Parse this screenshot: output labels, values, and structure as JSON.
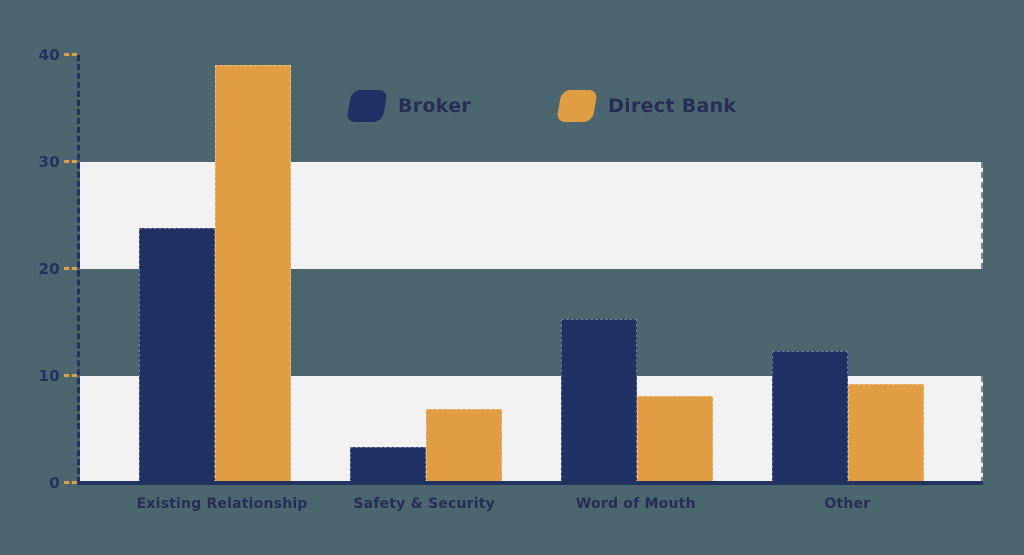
{
  "chart_data": {
    "type": "bar",
    "title": "",
    "xlabel": "",
    "ylabel": "",
    "categories": [
      "Existing Relationship",
      "Safety & Security",
      "Word of Mouth",
      "Other"
    ],
    "series": [
      {
        "name": "Broker",
        "color": "#203166",
        "values": [
          23.8,
          3.4,
          15.3,
          12.3
        ]
      },
      {
        "name": "Direct Bank",
        "color": "#e09d44",
        "values": [
          39.1,
          6.9,
          8.1,
          9.3
        ]
      }
    ],
    "ylim": [
      0,
      40
    ],
    "yticks": [
      0,
      10,
      20,
      30,
      40
    ],
    "legend_position": "top-center",
    "grid_bands": [
      {
        "from": 0,
        "to": 10
      },
      {
        "from": 20,
        "to": 30
      }
    ],
    "band_color": "#f2f2f3"
  },
  "colors": {
    "background": "#4c6670",
    "axis": "#22335f",
    "tick": "#e09d44",
    "label_text": "#272e56",
    "band": "#f2f2f3"
  }
}
